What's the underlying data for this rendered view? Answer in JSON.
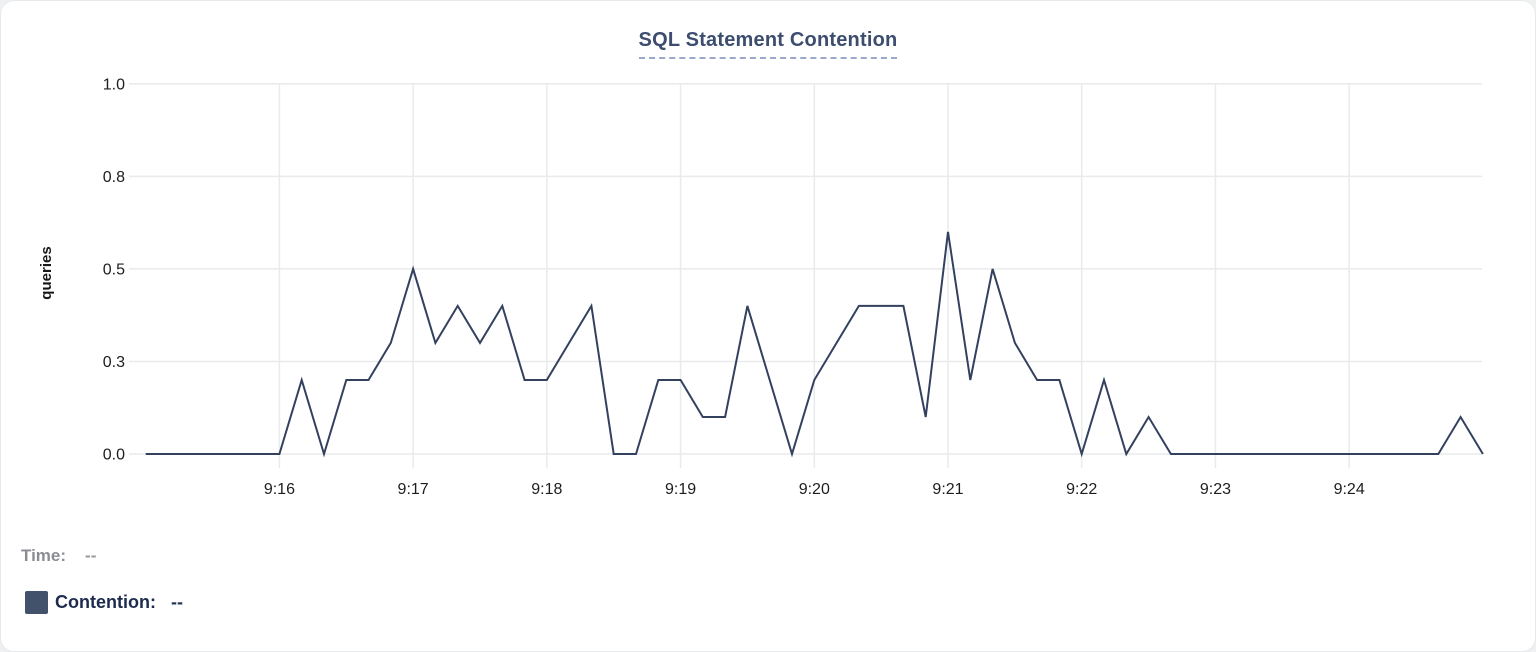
{
  "header": {
    "title": "SQL Statement Contention"
  },
  "legend": {
    "time_label": "Time:",
    "time_value": "--",
    "series_label": "Contention:",
    "series_value": "--",
    "swatch_color": "#42526b"
  },
  "chart_data": {
    "type": "line",
    "title": "SQL Statement Contention",
    "xlabel": "",
    "ylabel": "queries",
    "series_name": "Contention",
    "line_color": "#33415f",
    "grid_color": "#e9eaec",
    "tick_text_color": "#1d1d1f",
    "axis_label_color": "#17181a",
    "ylim": [
      0,
      1
    ],
    "grid": true,
    "legend_position": "bottom-left",
    "y_ticks": [
      {
        "value": 0,
        "label": "0.0"
      },
      {
        "value": 0.25,
        "label": "0.3"
      },
      {
        "value": 0.5,
        "label": "0.5"
      },
      {
        "value": 0.75,
        "label": "0.8"
      },
      {
        "value": 1.0,
        "label": "1.0"
      }
    ],
    "x_ticks": [
      {
        "time": "9:16:00",
        "label": "9:16"
      },
      {
        "time": "9:17:00",
        "label": "9:17"
      },
      {
        "time": "9:18:00",
        "label": "9:18"
      },
      {
        "time": "9:19:00",
        "label": "9:19"
      },
      {
        "time": "9:20:00",
        "label": "9:20"
      },
      {
        "time": "9:21:00",
        "label": "9:21"
      },
      {
        "time": "9:22:00",
        "label": "9:22"
      },
      {
        "time": "9:23:00",
        "label": "9:23"
      },
      {
        "time": "9:24:00",
        "label": "9:24"
      }
    ],
    "points": [
      [
        "9:15:00",
        0
      ],
      [
        "9:15:10",
        0
      ],
      [
        "9:15:20",
        0
      ],
      [
        "9:15:30",
        0
      ],
      [
        "9:15:40",
        0
      ],
      [
        "9:15:50",
        0
      ],
      [
        "9:16:00",
        0
      ],
      [
        "9:16:10",
        0.2
      ],
      [
        "9:16:20",
        0
      ],
      [
        "9:16:30",
        0.2
      ],
      [
        "9:16:40",
        0.2
      ],
      [
        "9:16:50",
        0.3
      ],
      [
        "9:17:00",
        0.5
      ],
      [
        "9:17:10",
        0.3
      ],
      [
        "9:17:20",
        0.4
      ],
      [
        "9:17:30",
        0.3
      ],
      [
        "9:17:40",
        0.4
      ],
      [
        "9:17:50",
        0.2
      ],
      [
        "9:18:00",
        0.2
      ],
      [
        "9:18:10",
        0.3
      ],
      [
        "9:18:20",
        0.4
      ],
      [
        "9:18:30",
        0
      ],
      [
        "9:18:40",
        0
      ],
      [
        "9:18:50",
        0.2
      ],
      [
        "9:19:00",
        0.2
      ],
      [
        "9:19:10",
        0.1
      ],
      [
        "9:19:20",
        0.1
      ],
      [
        "9:19:30",
        0.4
      ],
      [
        "9:19:40",
        0.2
      ],
      [
        "9:19:50",
        0
      ],
      [
        "9:20:00",
        0.2
      ],
      [
        "9:20:10",
        0.3
      ],
      [
        "9:20:20",
        0.4
      ],
      [
        "9:20:30",
        0.4
      ],
      [
        "9:20:40",
        0.4
      ],
      [
        "9:20:50",
        0.1
      ],
      [
        "9:21:00",
        0.6
      ],
      [
        "9:21:10",
        0.2
      ],
      [
        "9:21:20",
        0.5
      ],
      [
        "9:21:30",
        0.3
      ],
      [
        "9:21:40",
        0.2
      ],
      [
        "9:21:50",
        0.2
      ],
      [
        "9:22:00",
        0
      ],
      [
        "9:22:10",
        0.2
      ],
      [
        "9:22:20",
        0
      ],
      [
        "9:22:30",
        0.1
      ],
      [
        "9:22:40",
        0
      ],
      [
        "9:22:50",
        0
      ],
      [
        "9:23:00",
        0
      ],
      [
        "9:23:10",
        0
      ],
      [
        "9:23:20",
        0
      ],
      [
        "9:23:30",
        0
      ],
      [
        "9:23:40",
        0
      ],
      [
        "9:23:50",
        0
      ],
      [
        "9:24:00",
        0
      ],
      [
        "9:24:10",
        0
      ],
      [
        "9:24:20",
        0
      ],
      [
        "9:24:30",
        0
      ],
      [
        "9:24:40",
        0
      ],
      [
        "9:24:50",
        0.1
      ],
      [
        "9:25:00",
        0
      ]
    ]
  }
}
